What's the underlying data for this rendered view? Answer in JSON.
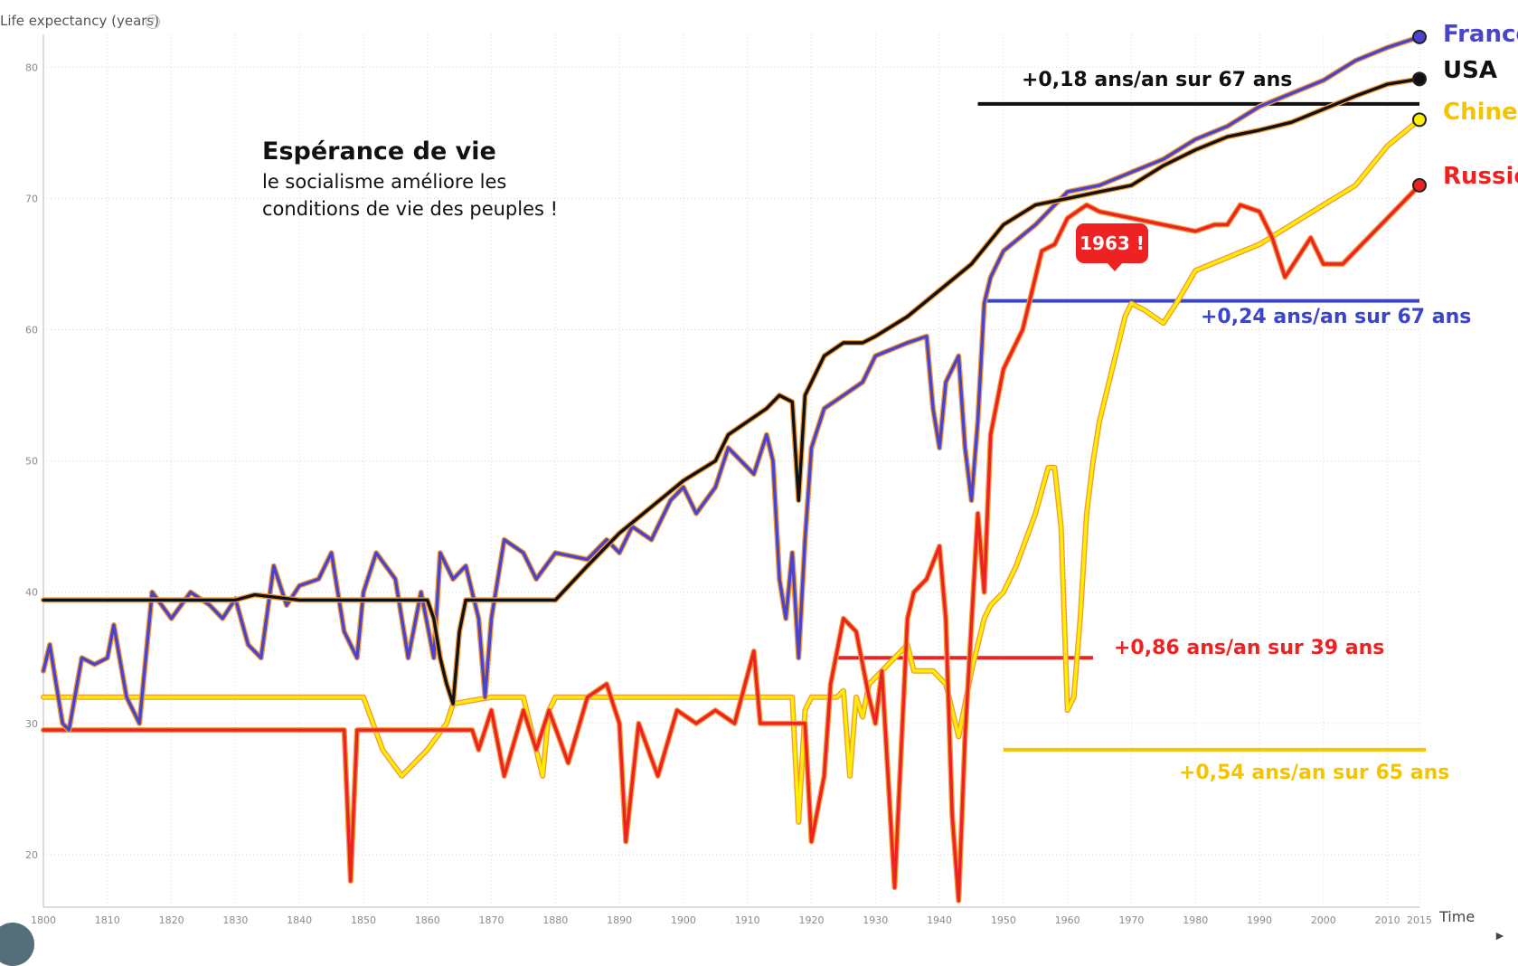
{
  "chart_data": {
    "type": "line",
    "ylabel": "Life expectancy (years)",
    "xlabel": "Time",
    "xlim": [
      1800,
      2015
    ],
    "ylim": [
      16,
      82.5
    ],
    "x_ticks": [
      1800,
      1810,
      1820,
      1830,
      1840,
      1850,
      1860,
      1870,
      1880,
      1890,
      1900,
      1910,
      1920,
      1930,
      1940,
      1950,
      1960,
      1970,
      1980,
      1990,
      2000,
      2010,
      2015
    ],
    "y_ticks": [
      20,
      30,
      40,
      50,
      60,
      70,
      80
    ],
    "grid": "dotted vertical and horizontal",
    "series": [
      {
        "name": "Chine",
        "color": "#ffee00",
        "label_color": "#f5c400",
        "points": [
          [
            1800,
            32
          ],
          [
            1850,
            32
          ],
          [
            1853,
            28
          ],
          [
            1856,
            26
          ],
          [
            1860,
            28
          ],
          [
            1863,
            30
          ],
          [
            1864,
            31.5
          ],
          [
            1870,
            32
          ],
          [
            1875,
            32
          ],
          [
            1877,
            28
          ],
          [
            1878,
            26
          ],
          [
            1879,
            31
          ],
          [
            1880,
            32
          ],
          [
            1917,
            32
          ],
          [
            1918,
            22.5
          ],
          [
            1919,
            31
          ],
          [
            1920,
            32
          ],
          [
            1924,
            32
          ],
          [
            1925,
            32.5
          ],
          [
            1926,
            26
          ],
          [
            1927,
            32
          ],
          [
            1928,
            30.5
          ],
          [
            1929,
            33
          ],
          [
            1935,
            36
          ],
          [
            1936,
            34
          ],
          [
            1939,
            34
          ],
          [
            1941,
            33
          ],
          [
            1943,
            29
          ],
          [
            1945,
            34
          ],
          [
            1947,
            38
          ],
          [
            1948,
            39
          ],
          [
            1950,
            40
          ],
          [
            1952,
            42
          ],
          [
            1955,
            46
          ],
          [
            1957,
            49.5
          ],
          [
            1958,
            49.5
          ],
          [
            1959,
            45
          ],
          [
            1960,
            31
          ],
          [
            1961,
            32
          ],
          [
            1962,
            38
          ],
          [
            1963,
            46
          ],
          [
            1964,
            50
          ],
          [
            1965,
            53
          ],
          [
            1967,
            57
          ],
          [
            1969,
            61
          ],
          [
            1970,
            62
          ],
          [
            1972,
            61.5
          ],
          [
            1975,
            60.5
          ],
          [
            1977,
            62
          ],
          [
            1980,
            64.5
          ],
          [
            1985,
            65.5
          ],
          [
            1990,
            66.5
          ],
          [
            1995,
            68
          ],
          [
            2000,
            69.5
          ],
          [
            2005,
            71
          ],
          [
            2010,
            74
          ],
          [
            2015,
            76
          ]
        ]
      },
      {
        "name": "Russie",
        "color": "#ee2222",
        "label_color": "#ee2222",
        "points": [
          [
            1800,
            29.5
          ],
          [
            1847,
            29.5
          ],
          [
            1848,
            18
          ],
          [
            1849,
            29.5
          ],
          [
            1862,
            29.5
          ],
          [
            1867,
            29.5
          ],
          [
            1868,
            28
          ],
          [
            1870,
            31
          ],
          [
            1872,
            26
          ],
          [
            1875,
            31
          ],
          [
            1877,
            28
          ],
          [
            1879,
            31
          ],
          [
            1882,
            27
          ],
          [
            1885,
            32
          ],
          [
            1888,
            33
          ],
          [
            1890,
            30
          ],
          [
            1891,
            21
          ],
          [
            1893,
            30
          ],
          [
            1896,
            26
          ],
          [
            1899,
            31
          ],
          [
            1902,
            30
          ],
          [
            1905,
            31
          ],
          [
            1908,
            30
          ],
          [
            1911,
            35.5
          ],
          [
            1912,
            30
          ],
          [
            1917,
            30
          ],
          [
            1919,
            30
          ],
          [
            1920,
            21
          ],
          [
            1922,
            26
          ],
          [
            1923,
            33
          ],
          [
            1925,
            38
          ],
          [
            1927,
            37
          ],
          [
            1929,
            32
          ],
          [
            1930,
            30
          ],
          [
            1931,
            34
          ],
          [
            1933,
            17.5
          ],
          [
            1935,
            38
          ],
          [
            1936,
            40
          ],
          [
            1938,
            41
          ],
          [
            1940,
            43.5
          ],
          [
            1941,
            38
          ],
          [
            1942,
            23
          ],
          [
            1943,
            16.5
          ],
          [
            1944,
            29
          ],
          [
            1946,
            46
          ],
          [
            1947,
            40
          ],
          [
            1948,
            52
          ],
          [
            1950,
            57
          ],
          [
            1953,
            60
          ],
          [
            1956,
            66
          ],
          [
            1958,
            66.5
          ],
          [
            1960,
            68.5
          ],
          [
            1963,
            69.5
          ],
          [
            1965,
            69
          ],
          [
            1970,
            68.5
          ],
          [
            1975,
            68
          ],
          [
            1980,
            67.5
          ],
          [
            1983,
            68
          ],
          [
            1985,
            68
          ],
          [
            1987,
            69.5
          ],
          [
            1990,
            69
          ],
          [
            1992,
            67
          ],
          [
            1994,
            64
          ],
          [
            1996,
            65.5
          ],
          [
            1998,
            67
          ],
          [
            2000,
            65
          ],
          [
            2003,
            65
          ],
          [
            2005,
            66
          ],
          [
            2010,
            68.5
          ],
          [
            2015,
            71
          ]
        ]
      },
      {
        "name": "France",
        "color": "#4a44cc",
        "label_color": "#4a44cc",
        "points": [
          [
            1800,
            34
          ],
          [
            1801,
            36
          ],
          [
            1803,
            30
          ],
          [
            1804,
            29.5
          ],
          [
            1806,
            35
          ],
          [
            1808,
            34.5
          ],
          [
            1810,
            35
          ],
          [
            1811,
            37.5
          ],
          [
            1813,
            32
          ],
          [
            1815,
            30
          ],
          [
            1817,
            40
          ],
          [
            1820,
            38
          ],
          [
            1823,
            40
          ],
          [
            1826,
            39
          ],
          [
            1828,
            38
          ],
          [
            1830,
            39.5
          ],
          [
            1832,
            36
          ],
          [
            1834,
            35
          ],
          [
            1836,
            42
          ],
          [
            1838,
            39
          ],
          [
            1840,
            40.5
          ],
          [
            1843,
            41
          ],
          [
            1845,
            43
          ],
          [
            1847,
            37
          ],
          [
            1849,
            35
          ],
          [
            1850,
            40
          ],
          [
            1852,
            43
          ],
          [
            1855,
            41
          ],
          [
            1857,
            35
          ],
          [
            1859,
            40
          ],
          [
            1861,
            35
          ],
          [
            1862,
            43
          ],
          [
            1864,
            41
          ],
          [
            1866,
            42
          ],
          [
            1868,
            38
          ],
          [
            1869,
            32
          ],
          [
            1870,
            38
          ],
          [
            1872,
            44
          ],
          [
            1875,
            43
          ],
          [
            1877,
            41
          ],
          [
            1880,
            43
          ],
          [
            1885,
            42.5
          ],
          [
            1888,
            44
          ],
          [
            1890,
            43
          ],
          [
            1892,
            45
          ],
          [
            1895,
            44
          ],
          [
            1898,
            47
          ],
          [
            1900,
            48
          ],
          [
            1902,
            46
          ],
          [
            1905,
            48
          ],
          [
            1907,
            51
          ],
          [
            1909,
            50
          ],
          [
            1911,
            49
          ],
          [
            1913,
            52
          ],
          [
            1914,
            50
          ],
          [
            1915,
            41
          ],
          [
            1916,
            38
          ],
          [
            1917,
            43
          ],
          [
            1918,
            35
          ],
          [
            1919,
            44
          ],
          [
            1920,
            51
          ],
          [
            1922,
            54
          ],
          [
            1925,
            55
          ],
          [
            1928,
            56
          ],
          [
            1930,
            58
          ],
          [
            1935,
            59
          ],
          [
            1938,
            59.5
          ],
          [
            1939,
            54
          ],
          [
            1940,
            51
          ],
          [
            1941,
            56
          ],
          [
            1943,
            58
          ],
          [
            1944,
            51
          ],
          [
            1945,
            47
          ],
          [
            1946,
            53
          ],
          [
            1947,
            62
          ],
          [
            1948,
            64
          ],
          [
            1950,
            66
          ],
          [
            1955,
            68
          ],
          [
            1960,
            70.5
          ],
          [
            1965,
            71
          ],
          [
            1970,
            72
          ],
          [
            1975,
            73
          ],
          [
            1980,
            74.5
          ],
          [
            1985,
            75.5
          ],
          [
            1990,
            77
          ],
          [
            1995,
            78
          ],
          [
            2000,
            79
          ],
          [
            2005,
            80.5
          ],
          [
            2010,
            81.5
          ],
          [
            2015,
            82.3
          ]
        ]
      },
      {
        "name": "USA",
        "color": "#111111",
        "label_color": "#111111",
        "points": [
          [
            1800,
            39.4
          ],
          [
            1830,
            39.4
          ],
          [
            1833,
            39.8
          ],
          [
            1840,
            39.4
          ],
          [
            1860,
            39.4
          ],
          [
            1861,
            38
          ],
          [
            1862,
            35
          ],
          [
            1863,
            33
          ],
          [
            1864,
            31.5
          ],
          [
            1865,
            37
          ],
          [
            1866,
            39.4
          ],
          [
            1880,
            39.4
          ],
          [
            1885,
            42
          ],
          [
            1890,
            44.5
          ],
          [
            1895,
            46.5
          ],
          [
            1900,
            48.5
          ],
          [
            1905,
            50
          ],
          [
            1907,
            52
          ],
          [
            1910,
            53
          ],
          [
            1913,
            54
          ],
          [
            1915,
            55
          ],
          [
            1917,
            54.5
          ],
          [
            1918,
            47
          ],
          [
            1919,
            55
          ],
          [
            1920,
            56
          ],
          [
            1922,
            58
          ],
          [
            1925,
            59
          ],
          [
            1928,
            59
          ],
          [
            1930,
            59.5
          ],
          [
            1935,
            61
          ],
          [
            1940,
            63
          ],
          [
            1945,
            65
          ],
          [
            1950,
            68
          ],
          [
            1955,
            69.5
          ],
          [
            1960,
            70
          ],
          [
            1965,
            70.5
          ],
          [
            1970,
            71
          ],
          [
            1975,
            72.5
          ],
          [
            1980,
            73.7
          ],
          [
            1985,
            74.7
          ],
          [
            1990,
            75.2
          ],
          [
            1995,
            75.8
          ],
          [
            2000,
            76.8
          ],
          [
            2005,
            77.8
          ],
          [
            2010,
            78.7
          ],
          [
            2015,
            79.1
          ]
        ]
      }
    ],
    "annotations": [
      {
        "text": "+0,18 ans/an sur 67 ans",
        "color": "#111111"
      },
      {
        "text": "+0,24 ans/an sur 67 ans",
        "color": "#3a44cc"
      },
      {
        "text": "+0,86 ans/an sur 39 ans",
        "color": "#ee2222"
      },
      {
        "text": "+0,54 ans/an sur 65 ans",
        "color": "#f5c400"
      }
    ],
    "notes": {
      "title": "Espérance de vie",
      "lines": [
        "le socialisme améliore les",
        "conditions de vie des peuples !"
      ]
    },
    "callout": "1963 !"
  }
}
